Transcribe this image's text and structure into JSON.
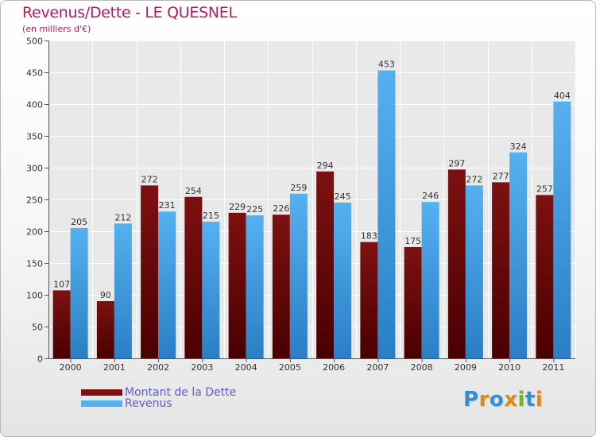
{
  "chart_data": {
    "type": "bar",
    "title": "Revenus/Dette - LE QUESNEL",
    "subtitle": "(en milliers d'€)",
    "categories": [
      "2000",
      "2001",
      "2002",
      "2003",
      "2004",
      "2005",
      "2006",
      "2007",
      "2008",
      "2009",
      "2010",
      "2011"
    ],
    "series": [
      {
        "name": "Montant de la Dette",
        "values": [
          107,
          90,
          272,
          254,
          229,
          226,
          294,
          183,
          175,
          297,
          277,
          257
        ],
        "color": "#7a0d0d"
      },
      {
        "name": "Revenus",
        "values": [
          205,
          212,
          231,
          215,
          225,
          259,
          245,
          453,
          246,
          272,
          324,
          404
        ],
        "color": "#3f9fe6"
      }
    ],
    "ylim": [
      0,
      500
    ],
    "yticks": [
      0,
      50,
      100,
      150,
      200,
      250,
      300,
      350,
      400,
      450,
      500
    ],
    "grid": true,
    "legend_position": "bottom-left"
  },
  "logo": {
    "text": "Proxiti",
    "letters": [
      {
        "ch": "P",
        "color": "#2f8fd8"
      },
      {
        "ch": "r",
        "color": "#e0861c"
      },
      {
        "ch": "o",
        "color": "#2f8fd8"
      },
      {
        "ch": "x",
        "color": "#e0861c"
      },
      {
        "ch": "i",
        "color": "#6cb82a"
      },
      {
        "ch": "t",
        "color": "#2f8fd8"
      },
      {
        "ch": "i",
        "color": "#e0861c"
      }
    ]
  }
}
